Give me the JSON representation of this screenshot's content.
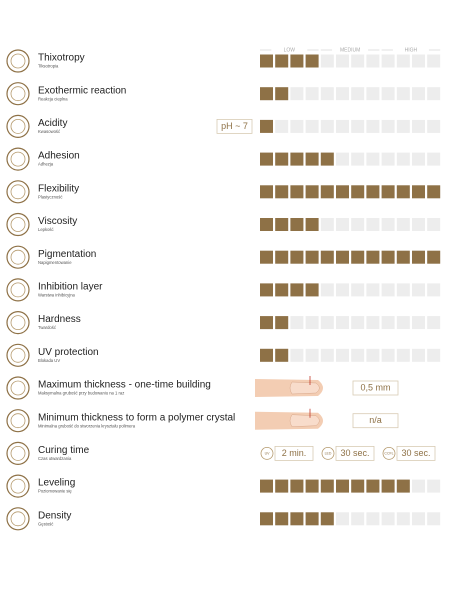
{
  "scale": {
    "low": "LOW",
    "medium": "MEDIUM",
    "high": "HIGH"
  },
  "rows": [
    {
      "title": "Thixotropy",
      "subtitle": "Tiksotropia",
      "level": 4
    },
    {
      "title": "Exothermic reaction",
      "subtitle": "Reakcja cieplna",
      "level": 2
    },
    {
      "title": "Acidity",
      "subtitle": "Kwasowość",
      "level": 1,
      "note": "pH ~ 7"
    },
    {
      "title": "Adhesion",
      "subtitle": "Adhezja",
      "level": 5
    },
    {
      "title": "Flexibility",
      "subtitle": "Plastyczność",
      "level": 12
    },
    {
      "title": "Viscosity",
      "subtitle": "Lepkość",
      "level": 4
    },
    {
      "title": "Pigmentation",
      "subtitle": "Napigmentowanie",
      "level": 12
    },
    {
      "title": "Inhibition layer",
      "subtitle": "Warstwa inhibicyjna",
      "level": 4
    },
    {
      "title": "Hardness",
      "subtitle": "Twardość",
      "level": 2
    },
    {
      "title": "UV protection",
      "subtitle": "Blokada UV",
      "level": 2
    },
    {
      "title": "Maximum thickness - one-time building",
      "subtitle": "Maksymalna grubość przy budowaniu na 1 raz",
      "value": "0,5 mm"
    },
    {
      "title": "Minimum thickness to form a polymer crystal",
      "subtitle": "Minimalna grubość do stworzenia kryształu polimera",
      "value": "n/a"
    },
    {
      "title": "Curing time",
      "subtitle": "Czas utwardzania",
      "curing": [
        {
          "label": "UV",
          "value": "2 min."
        },
        {
          "label": "LED",
          "value": "30 sec."
        },
        {
          "label": "CCFL",
          "value": "30 sec."
        }
      ]
    },
    {
      "title": "Leveling",
      "subtitle": "Poziomowanie się",
      "level": 10
    },
    {
      "title": "Density",
      "subtitle": "Gęstość",
      "level": 5
    }
  ]
}
